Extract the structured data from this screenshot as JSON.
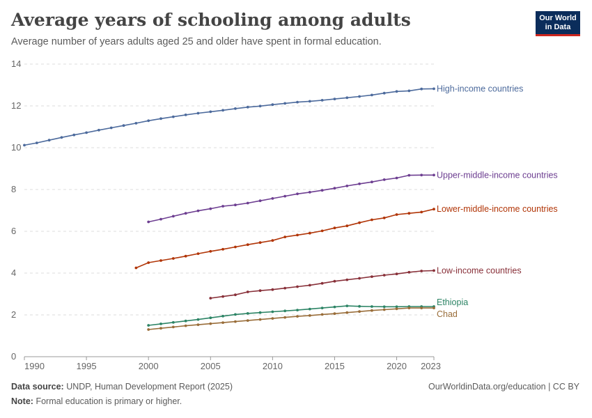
{
  "header": {
    "title": "Average years of schooling among adults",
    "subtitle": "Average number of years adults aged 25 and older have spent in formal education.",
    "logo_line1": "Our World",
    "logo_line2": "in Data"
  },
  "footer": {
    "source_label": "Data source:",
    "source_text": "UNDP, Human Development Report (2025)",
    "note_label": "Note:",
    "note_text": "Formal education is primary or higher.",
    "url": "OurWorldinData.org/education | CC BY"
  },
  "chart_data": {
    "type": "line",
    "xlim": [
      1990,
      2023
    ],
    "ylim": [
      0,
      14
    ],
    "x_ticks": [
      1990,
      1995,
      2000,
      2005,
      2010,
      2015,
      2020,
      2023
    ],
    "y_ticks": [
      0,
      2,
      4,
      6,
      8,
      10,
      12,
      14
    ],
    "grid": "horizontal dashed",
    "legend": "inline labels at right end of lines",
    "series": [
      {
        "name": "High-income countries",
        "color": "#4c6a9c",
        "start": 1990,
        "values": [
          10.12,
          10.23,
          10.36,
          10.49,
          10.61,
          10.72,
          10.84,
          10.95,
          11.06,
          11.17,
          11.29,
          11.39,
          11.48,
          11.57,
          11.65,
          11.72,
          11.79,
          11.87,
          11.94,
          11.99,
          12.06,
          12.12,
          12.18,
          12.22,
          12.27,
          12.33,
          12.39,
          12.45,
          12.52,
          12.61,
          12.69,
          12.72,
          12.81,
          12.82
        ]
      },
      {
        "name": "Upper-middle-income countries",
        "color": "#6d3e91",
        "start": 2000,
        "values": [
          6.45,
          6.58,
          6.72,
          6.86,
          6.98,
          7.08,
          7.2,
          7.26,
          7.35,
          7.46,
          7.57,
          7.68,
          7.79,
          7.87,
          7.96,
          8.06,
          8.17,
          8.27,
          8.36,
          8.47,
          8.55,
          8.68,
          8.69,
          8.69
        ]
      },
      {
        "name": "Lower-middle-income countries",
        "color": "#b13507",
        "start": 1999,
        "values": [
          4.25,
          4.5,
          4.6,
          4.7,
          4.81,
          4.93,
          5.04,
          5.14,
          5.25,
          5.36,
          5.46,
          5.56,
          5.73,
          5.82,
          5.91,
          6.02,
          6.16,
          6.26,
          6.41,
          6.55,
          6.64,
          6.8,
          6.86,
          6.92,
          7.06
        ]
      },
      {
        "name": "Low-income countries",
        "color": "#883039",
        "start": 2005,
        "values": [
          2.8,
          2.88,
          2.96,
          3.1,
          3.16,
          3.21,
          3.28,
          3.35,
          3.42,
          3.51,
          3.61,
          3.68,
          3.75,
          3.83,
          3.9,
          3.96,
          4.04,
          4.1,
          4.12
        ]
      },
      {
        "name": "Ethiopia",
        "color": "#2c8465",
        "start": 2000,
        "values": [
          1.5,
          1.57,
          1.64,
          1.71,
          1.78,
          1.86,
          1.94,
          2.02,
          2.07,
          2.11,
          2.15,
          2.19,
          2.23,
          2.28,
          2.33,
          2.38,
          2.43,
          2.41,
          2.4,
          2.39,
          2.39,
          2.4,
          2.4,
          2.4
        ]
      },
      {
        "name": "Chad",
        "color": "#996d39",
        "start": 2000,
        "values": [
          1.3,
          1.36,
          1.42,
          1.48,
          1.53,
          1.58,
          1.63,
          1.68,
          1.73,
          1.78,
          1.83,
          1.88,
          1.93,
          1.97,
          2.02,
          2.06,
          2.11,
          2.16,
          2.21,
          2.25,
          2.29,
          2.33,
          2.33,
          2.33
        ]
      }
    ]
  }
}
